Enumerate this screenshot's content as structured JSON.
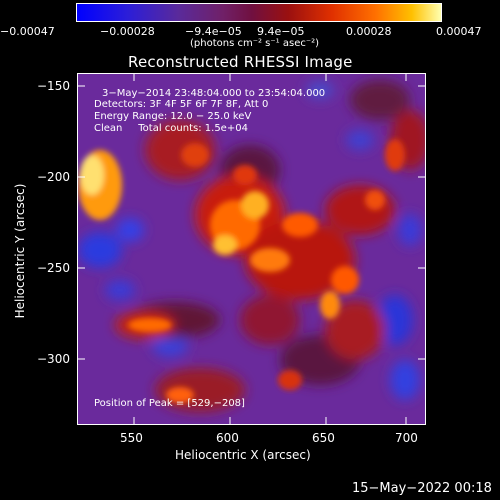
{
  "colorbar": {
    "tick_labels": [
      "−0.00047",
      "−0.00028",
      "−9.4e−05",
      "9.4e−05",
      "0.00028",
      "0.00047"
    ],
    "units": "(photons cm⁻² s⁻¹ asec⁻²)",
    "range": [
      -0.00047,
      0.00047
    ]
  },
  "plot": {
    "title": "Reconstructed RHESSI Image",
    "xlabel": "Heliocentric X (arcsec)",
    "ylabel": "Heliocentric Y (arcsec)",
    "x_ticks": [
      "550",
      "600",
      "650",
      "700"
    ],
    "y_ticks": [
      "−150",
      "−200",
      "−250",
      "−300"
    ],
    "xlim": [
      515,
      710
    ],
    "ylim": [
      -335,
      -143
    ]
  },
  "overlay": {
    "time_range": "3−May−2014 23:48:04.000 to 23:54:04.000",
    "detectors": "Detectors: 3F 4F 5F 6F 7F 8F, Att 0",
    "energy": "Energy Range: 12.0 − 25.0 keV",
    "clean": "Clean     Total counts: 1.5e+04",
    "peak": "Position of Peak = [529,−208]"
  },
  "footer": {
    "timestamp": "15−May−2022 00:18"
  }
}
